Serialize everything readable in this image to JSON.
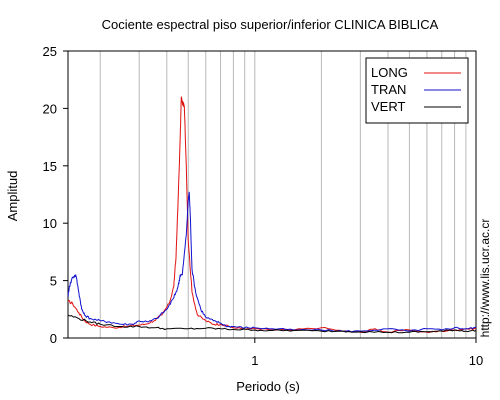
{
  "chart_data": {
    "type": "line",
    "title": "Cociente espectral piso superior/inferior  CLINICA BIBLICA",
    "xlabel": "Periodo (s)",
    "ylabel": "Amplitud",
    "x_scale": "log",
    "xlim": [
      0.143,
      10
    ],
    "ylim": [
      0,
      25
    ],
    "grid": "vertical log minor lines",
    "legend_position": "top-right",
    "x_ticks": [
      {
        "value": 1,
        "label": "1"
      },
      {
        "value": 10,
        "label": "10"
      }
    ],
    "y_ticks": [
      {
        "value": 0,
        "label": "0"
      },
      {
        "value": 5,
        "label": "5"
      },
      {
        "value": 10,
        "label": "10"
      },
      {
        "value": 15,
        "label": "15"
      },
      {
        "value": 20,
        "label": "20"
      },
      {
        "value": 25,
        "label": "25"
      }
    ],
    "series": [
      {
        "name": "LONG",
        "color": "#e01010",
        "points": [
          [
            0.143,
            3.2
          ],
          [
            0.15,
            3.0
          ],
          [
            0.16,
            2.2
          ],
          [
            0.17,
            1.5
          ],
          [
            0.18,
            1.2
          ],
          [
            0.2,
            1.0
          ],
          [
            0.23,
            0.9
          ],
          [
            0.26,
            1.0
          ],
          [
            0.29,
            1.1
          ],
          [
            0.32,
            1.2
          ],
          [
            0.35,
            1.5
          ],
          [
            0.38,
            2.0
          ],
          [
            0.41,
            3.0
          ],
          [
            0.43,
            4.5
          ],
          [
            0.44,
            7.0
          ],
          [
            0.45,
            12.0
          ],
          [
            0.46,
            17.5
          ],
          [
            0.465,
            21.0
          ],
          [
            0.47,
            20.5
          ],
          [
            0.48,
            20.2
          ],
          [
            0.49,
            15.0
          ],
          [
            0.5,
            8.5
          ],
          [
            0.52,
            4.0
          ],
          [
            0.55,
            2.0
          ],
          [
            0.6,
            1.5
          ],
          [
            0.65,
            1.2
          ],
          [
            0.7,
            1.2
          ],
          [
            0.8,
            0.9
          ],
          [
            0.9,
            0.8
          ],
          [
            1.0,
            0.8
          ],
          [
            1.2,
            0.7
          ],
          [
            1.5,
            0.7
          ],
          [
            2.0,
            0.9
          ],
          [
            2.5,
            0.6
          ],
          [
            3.0,
            0.5
          ],
          [
            3.5,
            0.8
          ],
          [
            4.0,
            0.5
          ],
          [
            5.0,
            0.7
          ],
          [
            6.0,
            0.5
          ],
          [
            7.0,
            0.6
          ],
          [
            8.0,
            0.7
          ],
          [
            9.0,
            0.8
          ],
          [
            10.0,
            0.8
          ]
        ]
      },
      {
        "name": "TRAN",
        "color": "#1010d0",
        "points": [
          [
            0.143,
            3.6
          ],
          [
            0.145,
            4.5
          ],
          [
            0.15,
            5.3
          ],
          [
            0.155,
            5.5
          ],
          [
            0.16,
            4.0
          ],
          [
            0.165,
            2.5
          ],
          [
            0.17,
            2.0
          ],
          [
            0.18,
            1.7
          ],
          [
            0.2,
            1.5
          ],
          [
            0.22,
            1.4
          ],
          [
            0.25,
            1.2
          ],
          [
            0.28,
            1.2
          ],
          [
            0.3,
            1.5
          ],
          [
            0.33,
            1.4
          ],
          [
            0.36,
            1.7
          ],
          [
            0.4,
            2.5
          ],
          [
            0.43,
            3.5
          ],
          [
            0.45,
            4.5
          ],
          [
            0.46,
            5.5
          ],
          [
            0.47,
            5.5
          ],
          [
            0.49,
            9.0
          ],
          [
            0.5,
            12.0
          ],
          [
            0.505,
            12.7
          ],
          [
            0.51,
            11.0
          ],
          [
            0.52,
            6.0
          ],
          [
            0.54,
            4.0
          ],
          [
            0.57,
            2.5
          ],
          [
            0.6,
            1.8
          ],
          [
            0.65,
            1.5
          ],
          [
            0.7,
            1.3
          ],
          [
            0.75,
            1.0
          ],
          [
            0.8,
            1.0
          ],
          [
            0.9,
            0.9
          ],
          [
            1.0,
            0.9
          ],
          [
            1.2,
            0.8
          ],
          [
            1.5,
            0.7
          ],
          [
            2.0,
            0.7
          ],
          [
            2.5,
            0.6
          ],
          [
            3.0,
            0.6
          ],
          [
            4.0,
            0.8
          ],
          [
            5.0,
            0.6
          ],
          [
            6.0,
            0.8
          ],
          [
            7.0,
            0.7
          ],
          [
            8.0,
            0.9
          ],
          [
            9.0,
            0.8
          ],
          [
            10.0,
            0.9
          ]
        ]
      },
      {
        "name": "VERT",
        "color": "#000000",
        "points": [
          [
            0.143,
            2.0
          ],
          [
            0.16,
            1.7
          ],
          [
            0.18,
            1.4
          ],
          [
            0.2,
            1.2
          ],
          [
            0.25,
            1.0
          ],
          [
            0.3,
            1.0
          ],
          [
            0.35,
            0.9
          ],
          [
            0.4,
            0.8
          ],
          [
            0.5,
            0.8
          ],
          [
            0.6,
            0.85
          ],
          [
            0.7,
            0.8
          ],
          [
            0.8,
            0.75
          ],
          [
            1.0,
            0.7
          ],
          [
            1.2,
            0.65
          ],
          [
            1.5,
            0.65
          ],
          [
            2.0,
            0.6
          ],
          [
            2.5,
            0.6
          ],
          [
            3.0,
            0.55
          ],
          [
            4.0,
            0.5
          ],
          [
            5.0,
            0.5
          ],
          [
            6.0,
            0.55
          ],
          [
            7.0,
            0.6
          ],
          [
            8.0,
            0.7
          ],
          [
            9.0,
            0.6
          ],
          [
            10.0,
            0.65
          ]
        ]
      }
    ]
  },
  "credit": "http://www.lis.ucr.ac.cr"
}
